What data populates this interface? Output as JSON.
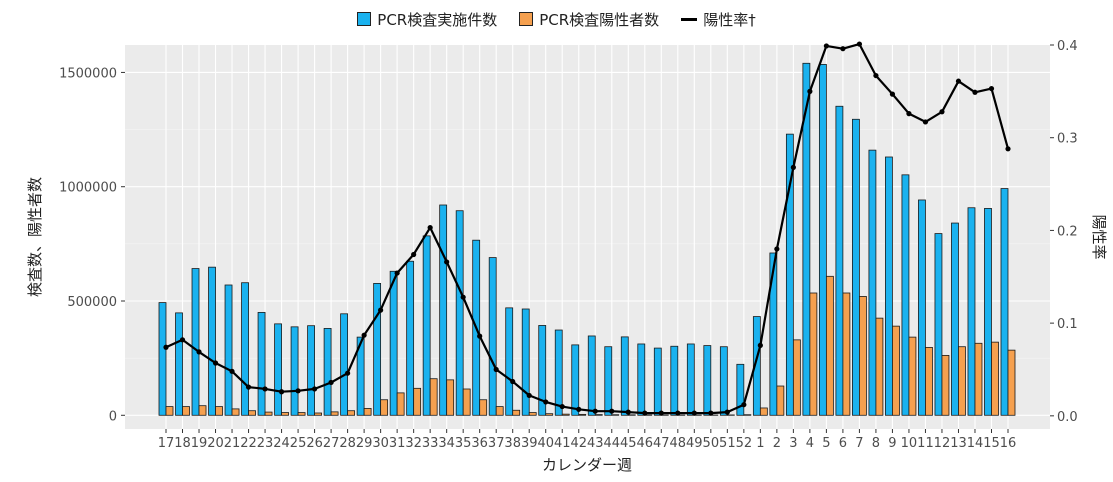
{
  "chart_data": {
    "type": "bar",
    "title": "",
    "xlabel": "カレンダー週",
    "ylabel": "検査数、陽性者数",
    "y2label": "陽性率",
    "ylim": [
      -60000,
      1620000
    ],
    "y2lim": [
      -0.0142,
      0.4
    ],
    "yticks": [
      0,
      500000,
      1000000,
      1500000
    ],
    "ytick_labels": [
      "0",
      "500000",
      "1000000",
      "1500000"
    ],
    "y2ticks": [
      0.0,
      0.1,
      0.2,
      0.3,
      0.4
    ],
    "y2tick_labels": [
      "0.0",
      "0.1",
      "0.2",
      "0.3",
      "0.4"
    ],
    "legend_position": "top",
    "grid": true,
    "categories": [
      "17",
      "18",
      "19",
      "20",
      "21",
      "22",
      "23",
      "24",
      "25",
      "26",
      "27",
      "28",
      "29",
      "30",
      "31",
      "32",
      "33",
      "34",
      "35",
      "36",
      "37",
      "38",
      "39",
      "40",
      "41",
      "42",
      "43",
      "44",
      "45",
      "46",
      "47",
      "48",
      "49",
      "50",
      "51",
      "52",
      "1",
      "2",
      "3",
      "4",
      "5",
      "6",
      "7",
      "8",
      "9",
      "10",
      "11",
      "12",
      "13",
      "14",
      "15",
      "16"
    ],
    "series": [
      {
        "name": "PCR検査実施件数",
        "kind": "bar",
        "axis": "left",
        "color": "#1ab2ef",
        "values": [
          493000,
          448000,
          642000,
          648000,
          570000,
          580000,
          450000,
          400000,
          387000,
          392000,
          380000,
          444000,
          342000,
          577000,
          630000,
          674000,
          785000,
          920000,
          895000,
          766000,
          690000,
          470000,
          465000,
          393000,
          373000,
          308000,
          347000,
          300000,
          343000,
          312000,
          294000,
          302000,
          312000,
          305000,
          300000,
          223000,
          432000,
          710000,
          1230000,
          1540000,
          1535000,
          1352000,
          1295000,
          1160000,
          1130000,
          1052000,
          942000,
          795000,
          841000,
          908000,
          905000,
          992000
        ]
      },
      {
        "name": "PCR検査陽性者数",
        "kind": "bar",
        "axis": "left",
        "color": "#f5a04f",
        "values": [
          38000,
          38000,
          42000,
          38000,
          28000,
          20000,
          14000,
          12000,
          12000,
          10000,
          15000,
          20000,
          30000,
          68000,
          98000,
          118000,
          160000,
          155000,
          115000,
          68000,
          38000,
          22000,
          12000,
          7000,
          5000,
          4000,
          3000,
          2500,
          2000,
          1500,
          1200,
          1000,
          1000,
          1200,
          1500,
          2500,
          32000,
          128000,
          330000,
          535000,
          608000,
          535000,
          520000,
          425000,
          390000,
          342000,
          297000,
          262000,
          300000,
          315000,
          320000,
          285000
        ]
      },
      {
        "name": "陽性率†",
        "kind": "line",
        "axis": "right",
        "color": "#000000",
        "values": [
          0.074,
          0.082,
          0.069,
          0.057,
          0.048,
          0.031,
          0.029,
          0.026,
          0.027,
          0.029,
          0.036,
          0.046,
          0.087,
          0.114,
          0.154,
          0.174,
          0.203,
          0.166,
          0.128,
          0.086,
          0.05,
          0.037,
          0.022,
          0.015,
          0.01,
          0.007,
          0.005,
          0.005,
          0.004,
          0.003,
          0.003,
          0.003,
          0.003,
          0.003,
          0.004,
          0.012,
          0.076,
          0.18,
          0.268,
          0.35,
          0.399,
          0.396,
          0.401,
          0.367,
          0.347,
          0.326,
          0.317,
          0.328,
          0.361,
          0.349,
          0.353,
          0.288
        ]
      }
    ]
  }
}
